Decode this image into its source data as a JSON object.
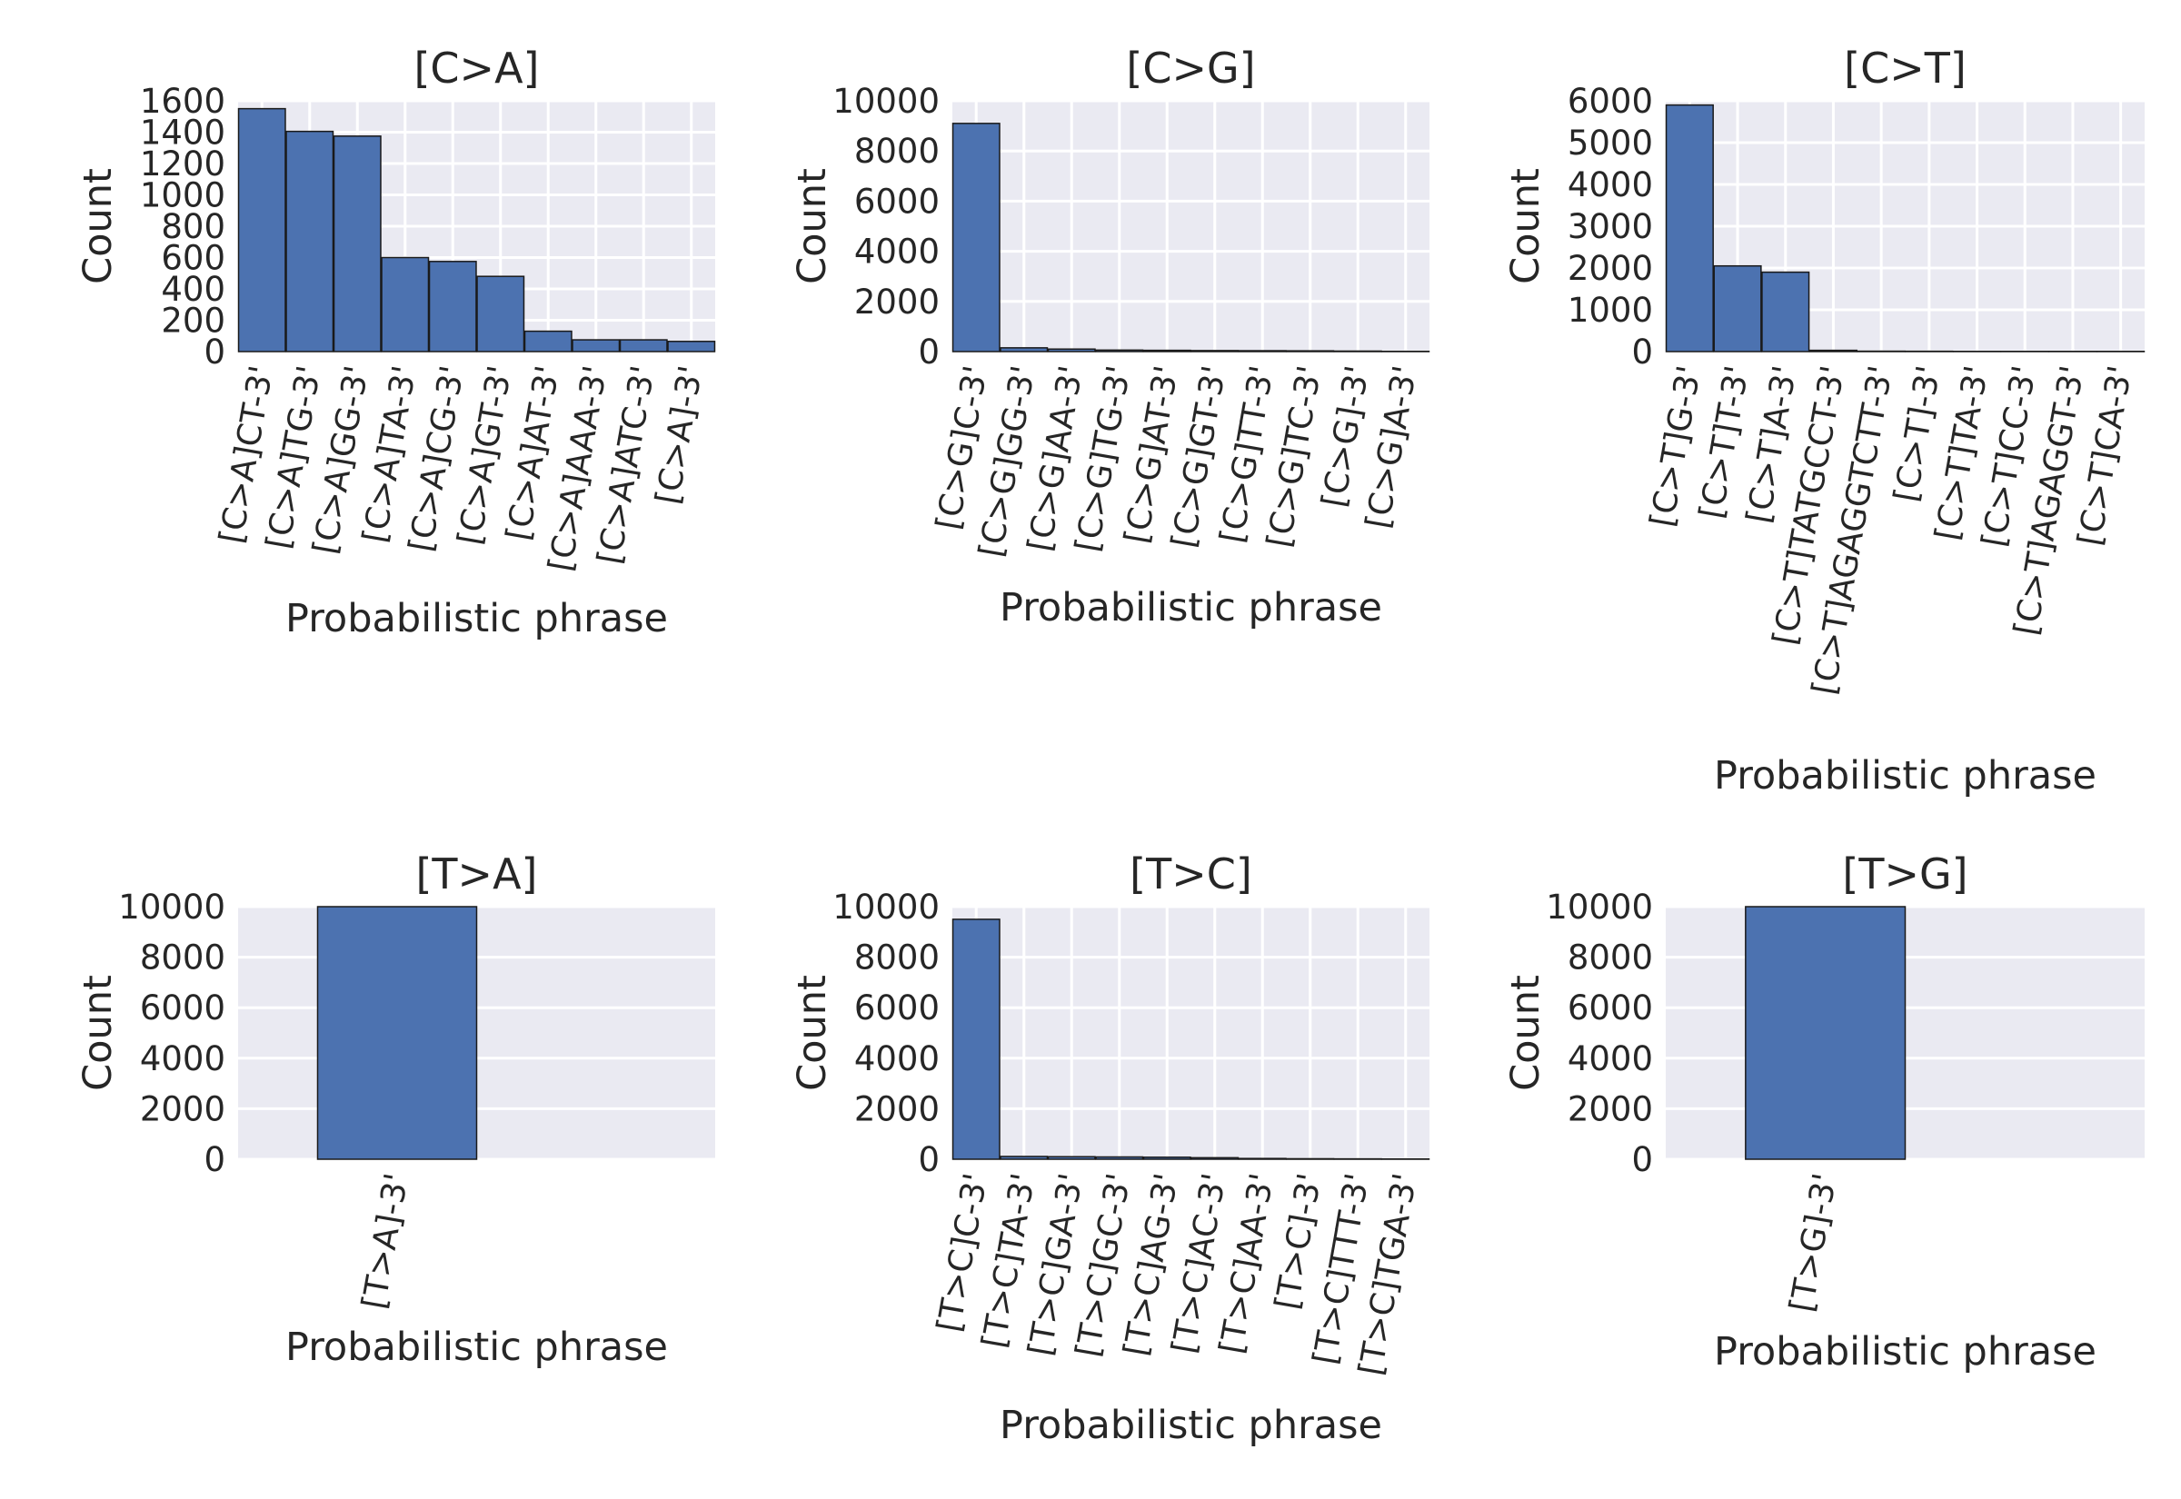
{
  "figure": {
    "background": "#ffffff",
    "panel_background": "#eaeaf2",
    "grid_color": "#ffffff",
    "bar_color": "#4c72b0",
    "bar_edge_color": "#1a1a1a",
    "text_color": "#262626"
  },
  "chart_data": [
    {
      "type": "bar",
      "title": "[C>A]",
      "xlabel": "Probabilistic phrase",
      "ylabel": "Count",
      "ylim": [
        0,
        1600
      ],
      "yticks": [
        0,
        200,
        400,
        600,
        800,
        1000,
        1200,
        1400,
        1600
      ],
      "grid": true,
      "categories": [
        "[C>A]CT-3'",
        "[C>A]TG-3'",
        "[C>A]GG-3'",
        "[C>A]TA-3'",
        "[C>A]CG-3'",
        "[C>A]GT-3'",
        "[C>A]AT-3'",
        "[C>A]AAA-3'",
        "[C>A]ATC-3'",
        "[C>A]-3'"
      ],
      "values": [
        1550,
        1405,
        1375,
        600,
        575,
        480,
        130,
        75,
        75,
        65
      ]
    },
    {
      "type": "bar",
      "title": "[C>G]",
      "xlabel": "Probabilistic phrase",
      "ylabel": "Count",
      "ylim": [
        0,
        10000
      ],
      "yticks": [
        0,
        2000,
        4000,
        6000,
        8000,
        10000
      ],
      "grid": true,
      "categories": [
        "[C>G]C-3'",
        "[C>G]GG-3'",
        "[C>G]AA-3'",
        "[C>G]TG-3'",
        "[C>G]AT-3'",
        "[C>G]GT-3'",
        "[C>G]TT-3'",
        "[C>G]TC-3'",
        "[C>G]-3'",
        "[C>G]A-3'"
      ],
      "values": [
        9100,
        150,
        100,
        60,
        50,
        40,
        35,
        30,
        20,
        10
      ]
    },
    {
      "type": "bar",
      "title": "[C>T]",
      "xlabel": "Probabilistic phrase",
      "ylabel": "Count",
      "ylim": [
        0,
        6000
      ],
      "yticks": [
        0,
        1000,
        2000,
        3000,
        4000,
        5000,
        6000
      ],
      "grid": true,
      "categories": [
        "[C>T]G-3'",
        "[C>T]T-3'",
        "[C>T]A-3'",
        "[C>T]TATGCCT-3'",
        "[C>T]AGAGGTCTT-3'",
        "[C>T]-3'",
        "[C>T]TA-3'",
        "[C>T]CC-3'",
        "[C>T]AGAGGT-3'",
        "[C>T]CA-3'"
      ],
      "values": [
        5900,
        2050,
        1900,
        30,
        10,
        8,
        5,
        5,
        5,
        5
      ]
    },
    {
      "type": "bar",
      "title": "[T>A]",
      "xlabel": "Probabilistic phrase",
      "ylabel": "Count",
      "ylim": [
        0,
        10000
      ],
      "yticks": [
        0,
        2000,
        4000,
        6000,
        8000,
        10000
      ],
      "grid": true,
      "categories": [
        "[T>A]-3'"
      ],
      "values": [
        10000
      ]
    },
    {
      "type": "bar",
      "title": "[T>C]",
      "xlabel": "Probabilistic phrase",
      "ylabel": "Count",
      "ylim": [
        0,
        10000
      ],
      "yticks": [
        0,
        2000,
        4000,
        6000,
        8000,
        10000
      ],
      "grid": true,
      "categories": [
        "[T>C]C-3'",
        "[T>C]TA-3'",
        "[T>C]GA-3'",
        "[T>C]GC-3'",
        "[T>C]AG-3'",
        "[T>C]AC-3'",
        "[T>C]AA-3'",
        "[T>C]-3'",
        "[T>C]TTT-3'",
        "[T>C]TGA-3'"
      ],
      "values": [
        9500,
        110,
        100,
        90,
        80,
        60,
        30,
        20,
        15,
        10
      ]
    },
    {
      "type": "bar",
      "title": "[T>G]",
      "xlabel": "Probabilistic phrase",
      "ylabel": "Count",
      "ylim": [
        0,
        10000
      ],
      "yticks": [
        0,
        2000,
        4000,
        6000,
        8000,
        10000
      ],
      "grid": true,
      "categories": [
        "[T>G]-3'"
      ],
      "values": [
        10000
      ]
    }
  ]
}
